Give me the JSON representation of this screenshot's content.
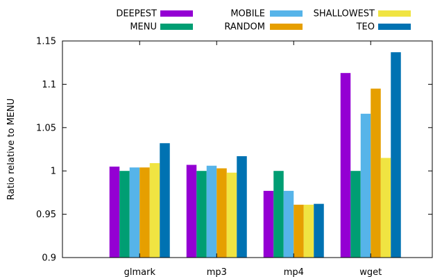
{
  "chart_data": {
    "type": "bar",
    "categories": [
      "glmark",
      "mp3",
      "mp4",
      "wget"
    ],
    "series": [
      {
        "name": "DEEPEST",
        "color": "#9400d3",
        "values": [
          1.005,
          1.007,
          0.977,
          1.113
        ]
      },
      {
        "name": "MENU",
        "color": "#009e73",
        "values": [
          1.0,
          1.0,
          1.0,
          1.0
        ]
      },
      {
        "name": "MOBILE",
        "color": "#56b4e9",
        "values": [
          1.004,
          1.006,
          0.977,
          1.066
        ]
      },
      {
        "name": "RANDOM",
        "color": "#e69f00",
        "values": [
          1.004,
          1.003,
          0.961,
          1.095
        ]
      },
      {
        "name": "SHALLOWEST",
        "color": "#f0e442",
        "values": [
          1.009,
          0.998,
          0.961,
          1.015
        ]
      },
      {
        "name": "TEO",
        "color": "#0072b2",
        "values": [
          1.032,
          1.017,
          0.962,
          1.137
        ]
      }
    ],
    "title": "",
    "xlabel": "",
    "ylabel": "Ratio relative to MENU",
    "ylim": [
      0.9,
      1.15
    ],
    "yticks": [
      "0.9",
      "0.95",
      "1",
      "1.05",
      "1.1",
      "1.15"
    ],
    "ytick_values": [
      0.9,
      0.95,
      1.0,
      1.05,
      1.1,
      1.15
    ],
    "grid": false,
    "legend_position": "top"
  }
}
